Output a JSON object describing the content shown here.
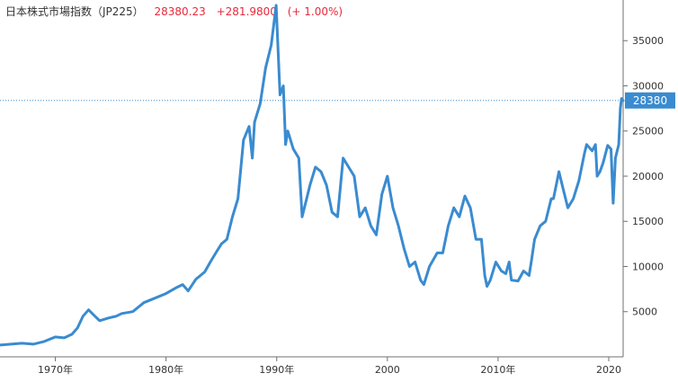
{
  "header": {
    "title": "日本株式市場指数（JP225）",
    "price": "28380.23",
    "change": "+281.9800",
    "change_pct": "(+ 1.00%)"
  },
  "colors": {
    "line": "#3a8bd0",
    "up": "#e8283a",
    "axis": "#6f6f6f",
    "current_bg": "#3a8bd0"
  },
  "current": {
    "value": 28380,
    "label": "28380"
  },
  "chart_data": {
    "type": "line",
    "title": "",
    "xlabel": "",
    "ylabel": "",
    "xlim": [
      1965,
      2021.3
    ],
    "ylim": [
      0,
      39500
    ],
    "yticks": [
      {
        "value": 5000,
        "label": "5000"
      },
      {
        "value": 10000,
        "label": "10000"
      },
      {
        "value": 15000,
        "label": "15000"
      },
      {
        "value": 20000,
        "label": "20000"
      },
      {
        "value": 25000,
        "label": "25000"
      },
      {
        "value": 30000,
        "label": "30000"
      },
      {
        "value": 35000,
        "label": "35000"
      }
    ],
    "xticks": [
      {
        "value": 1970,
        "label": "1970年"
      },
      {
        "value": 1980,
        "label": "1980年"
      },
      {
        "value": 1990,
        "label": "1990年"
      },
      {
        "value": 2000,
        "label": "2000"
      },
      {
        "value": 2010,
        "label": "2010年"
      },
      {
        "value": 2020,
        "label": "2020"
      }
    ],
    "grid": false,
    "series": [
      {
        "x": [
          1965.0,
          1966.0,
          1967.0,
          1968.0,
          1969.0,
          1970.0,
          1970.8,
          1971.5,
          1972.0,
          1972.5,
          1973.0,
          1973.5,
          1974.0,
          1974.8,
          1975.5,
          1976.0,
          1977.0,
          1978.0,
          1979.0,
          1980.0,
          1981.0,
          1981.5,
          1982.0,
          1982.7,
          1983.5,
          1984.0,
          1984.5,
          1985.0,
          1985.5,
          1986.0,
          1986.5,
          1987.0,
          1987.5,
          1987.8,
          1988.0,
          1988.5,
          1989.0,
          1989.5,
          1989.95,
          1990.3,
          1990.6,
          1990.8,
          1991.0,
          1991.5,
          1992.0,
          1992.3,
          1992.7,
          1993.0,
          1993.5,
          1994.0,
          1994.5,
          1995.0,
          1995.5,
          1996.0,
          1996.5,
          1997.0,
          1997.5,
          1998.0,
          1998.5,
          1999.0,
          1999.5,
          2000.0,
          2000.5,
          2001.0,
          2001.5,
          2002.0,
          2002.5,
          2003.0,
          2003.3,
          2003.8,
          2004.5,
          2005.0,
          2005.5,
          2006.0,
          2006.5,
          2007.0,
          2007.5,
          2008.0,
          2008.5,
          2008.8,
          2009.0,
          2009.3,
          2009.8,
          2010.3,
          2010.7,
          2011.0,
          2011.2,
          2011.8,
          2012.3,
          2012.8,
          2013.0,
          2013.3,
          2013.8,
          2014.3,
          2014.8,
          2015.0,
          2015.5,
          2015.9,
          2016.3,
          2016.8,
          2017.3,
          2017.8,
          2018.0,
          2018.5,
          2018.8,
          2018.95,
          2019.2,
          2019.5,
          2019.9,
          2020.2,
          2020.4,
          2020.6,
          2020.9,
          2021.05,
          2021.15,
          2021.3
        ],
        "y": [
          1300,
          1400,
          1500,
          1400,
          1700,
          2200,
          2100,
          2500,
          3200,
          4500,
          5200,
          4600,
          4000,
          4300,
          4500,
          4800,
          5000,
          6000,
          6500,
          7000,
          7700,
          8000,
          7300,
          8600,
          9400,
          10500,
          11500,
          12500,
          13000,
          15500,
          17500,
          24000,
          25500,
          22000,
          26000,
          28000,
          32000,
          34500,
          38916,
          29000,
          30000,
          23500,
          25000,
          23000,
          22000,
          15500,
          17500,
          19000,
          21000,
          20500,
          19000,
          16000,
          15500,
          22000,
          21000,
          20000,
          15500,
          16500,
          14500,
          13500,
          18000,
          20000,
          16500,
          14500,
          12000,
          10000,
          10500,
          8500,
          8000,
          10000,
          11500,
          11500,
          14500,
          16500,
          15500,
          17800,
          16500,
          13000,
          13000,
          9000,
          7800,
          8500,
          10500,
          9500,
          9200,
          10500,
          8500,
          8400,
          9500,
          9000,
          10500,
          13000,
          14500,
          15000,
          17500,
          17500,
          20500,
          18500,
          16500,
          17500,
          19500,
          22500,
          23500,
          22800,
          23500,
          20000,
          20500,
          21500,
          23400,
          23000,
          17000,
          22000,
          23500,
          27500,
          28600,
          28380
        ]
      }
    ]
  }
}
